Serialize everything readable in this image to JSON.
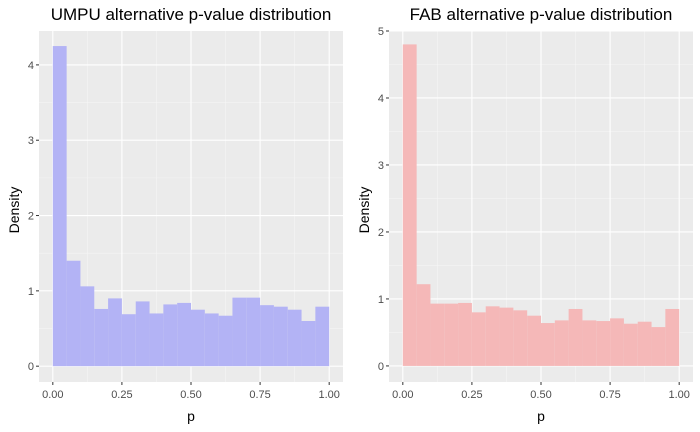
{
  "chart_data": [
    {
      "type": "bar",
      "title": "UMPU alternative p-value distribution",
      "xlabel": "p",
      "ylabel": "Density",
      "fill": "#b3b3f5",
      "xlim": [
        -0.05,
        1.05
      ],
      "ylim": [
        -0.21,
        4.45
      ],
      "xticks": [
        0.0,
        0.25,
        0.5,
        0.75,
        1.0
      ],
      "xtick_labels": [
        "0.00",
        "0.25",
        "0.50",
        "0.75",
        "1.00"
      ],
      "yticks": [
        0,
        1,
        2,
        3,
        4
      ],
      "ytick_labels": [
        "0",
        "1",
        "2",
        "3",
        "4"
      ],
      "bin_edges": [
        0.0,
        0.05,
        0.1,
        0.15,
        0.2,
        0.25,
        0.3,
        0.35,
        0.4,
        0.45,
        0.5,
        0.55,
        0.6,
        0.65,
        0.7,
        0.75,
        0.8,
        0.85,
        0.9,
        0.95,
        1.0
      ],
      "values": [
        4.25,
        1.4,
        1.06,
        0.76,
        0.9,
        0.69,
        0.86,
        0.7,
        0.82,
        0.84,
        0.75,
        0.7,
        0.67,
        0.91,
        0.91,
        0.81,
        0.79,
        0.75,
        0.6,
        0.79
      ],
      "grid": true
    },
    {
      "type": "bar",
      "title": "FAB alternative p-value distribution",
      "xlabel": "p",
      "ylabel": "Density",
      "fill": "#f5b8b8",
      "xlim": [
        -0.05,
        1.05
      ],
      "ylim": [
        -0.24,
        5.0
      ],
      "xticks": [
        0.0,
        0.25,
        0.5,
        0.75,
        1.0
      ],
      "xtick_labels": [
        "0.00",
        "0.25",
        "0.50",
        "0.75",
        "1.00"
      ],
      "yticks": [
        0,
        1,
        2,
        3,
        4,
        5
      ],
      "ytick_labels": [
        "0",
        "1",
        "2",
        "3",
        "4",
        "5"
      ],
      "bin_edges": [
        0.0,
        0.05,
        0.1,
        0.15,
        0.2,
        0.25,
        0.3,
        0.35,
        0.4,
        0.45,
        0.5,
        0.55,
        0.6,
        0.65,
        0.7,
        0.75,
        0.8,
        0.85,
        0.9,
        0.95,
        1.0
      ],
      "values": [
        4.8,
        1.22,
        0.93,
        0.93,
        0.94,
        0.8,
        0.89,
        0.87,
        0.83,
        0.75,
        0.64,
        0.68,
        0.85,
        0.68,
        0.67,
        0.71,
        0.63,
        0.66,
        0.58,
        0.85
      ],
      "grid": true
    }
  ]
}
